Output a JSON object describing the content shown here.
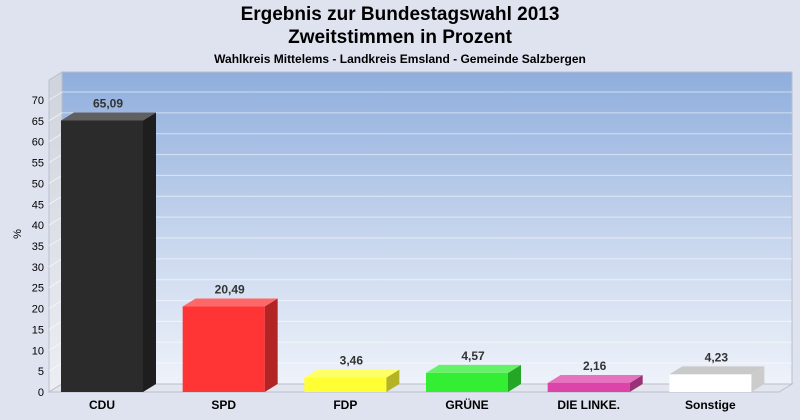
{
  "chart_data": {
    "type": "bar",
    "title_line1": "Ergebnis zur Bundestagswahl 2013",
    "title_line2": "Zweitstimmen in Prozent",
    "subtitle": "Wahlkreis Mittelems - Landkreis Emsland - Gemeinde Salzbergen",
    "ylabel": "%",
    "ylim": [
      0,
      70
    ],
    "ytick_step": 5,
    "grid": true,
    "categories": [
      "CDU",
      "SPD",
      "FDP",
      "GRÜNE",
      "DIE LINKE.",
      "Sonstige"
    ],
    "values": [
      65.09,
      20.49,
      3.46,
      4.57,
      2.16,
      4.23
    ],
    "value_labels": [
      "65,09",
      "20,49",
      "3,46",
      "4,57",
      "2,16",
      "4,23"
    ],
    "colors": [
      "#2b2b2b",
      "#ff3535",
      "#ffff33",
      "#33ee33",
      "#dd44aa",
      "#ffffff"
    ]
  }
}
